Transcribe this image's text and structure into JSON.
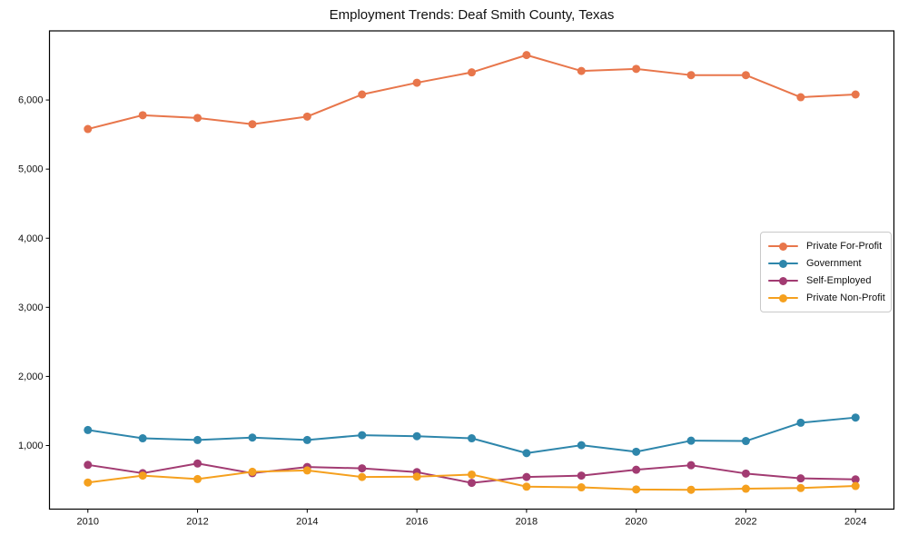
{
  "chart_data": {
    "type": "line",
    "title": "Employment Trends: Deaf Smith County, Texas",
    "x": [
      2010,
      2011,
      2012,
      2013,
      2014,
      2015,
      2016,
      2017,
      2018,
      2019,
      2020,
      2021,
      2022,
      2023,
      2024
    ],
    "series": [
      {
        "name": "Private For-Profit",
        "color": "#E8764B",
        "values": [
          5580,
          5780,
          5740,
          5650,
          5760,
          6080,
          6250,
          6400,
          6650,
          6420,
          6450,
          6360,
          6360,
          6040,
          6080
        ]
      },
      {
        "name": "Government",
        "color": "#2E86AB",
        "values": [
          1225,
          1105,
          1080,
          1115,
          1080,
          1150,
          1135,
          1105,
          890,
          1005,
          910,
          1070,
          1065,
          1330,
          1405
        ]
      },
      {
        "name": "Self-Employed",
        "color": "#A23B72",
        "values": [
          720,
          600,
          740,
          600,
          690,
          670,
          615,
          460,
          545,
          565,
          650,
          715,
          595,
          525,
          510
        ]
      },
      {
        "name": "Private Non-Profit",
        "color": "#F5A01E",
        "values": [
          465,
          565,
          515,
          620,
          640,
          545,
          550,
          580,
          405,
          395,
          365,
          360,
          375,
          385,
          415
        ]
      }
    ],
    "xlabel": "",
    "ylabel": "",
    "xticks": [
      2010,
      2012,
      2014,
      2016,
      2018,
      2020,
      2022,
      2024
    ],
    "xtick_labels": [
      "2010",
      "2012",
      "2014",
      "2016",
      "2018",
      "2020",
      "2022",
      "2024"
    ],
    "yticks": [
      1000,
      2000,
      3000,
      4000,
      5000,
      6000
    ],
    "ytick_labels": [
      "1,000",
      "2,000",
      "3,000",
      "4,000",
      "5,000",
      "6,000"
    ],
    "xlim": [
      2009.3,
      2024.7
    ],
    "ylim": [
      80,
      7000
    ],
    "grid": false,
    "legend_position": "center-right",
    "marker": "o",
    "line_width": 2,
    "marker_diameter": 9
  }
}
